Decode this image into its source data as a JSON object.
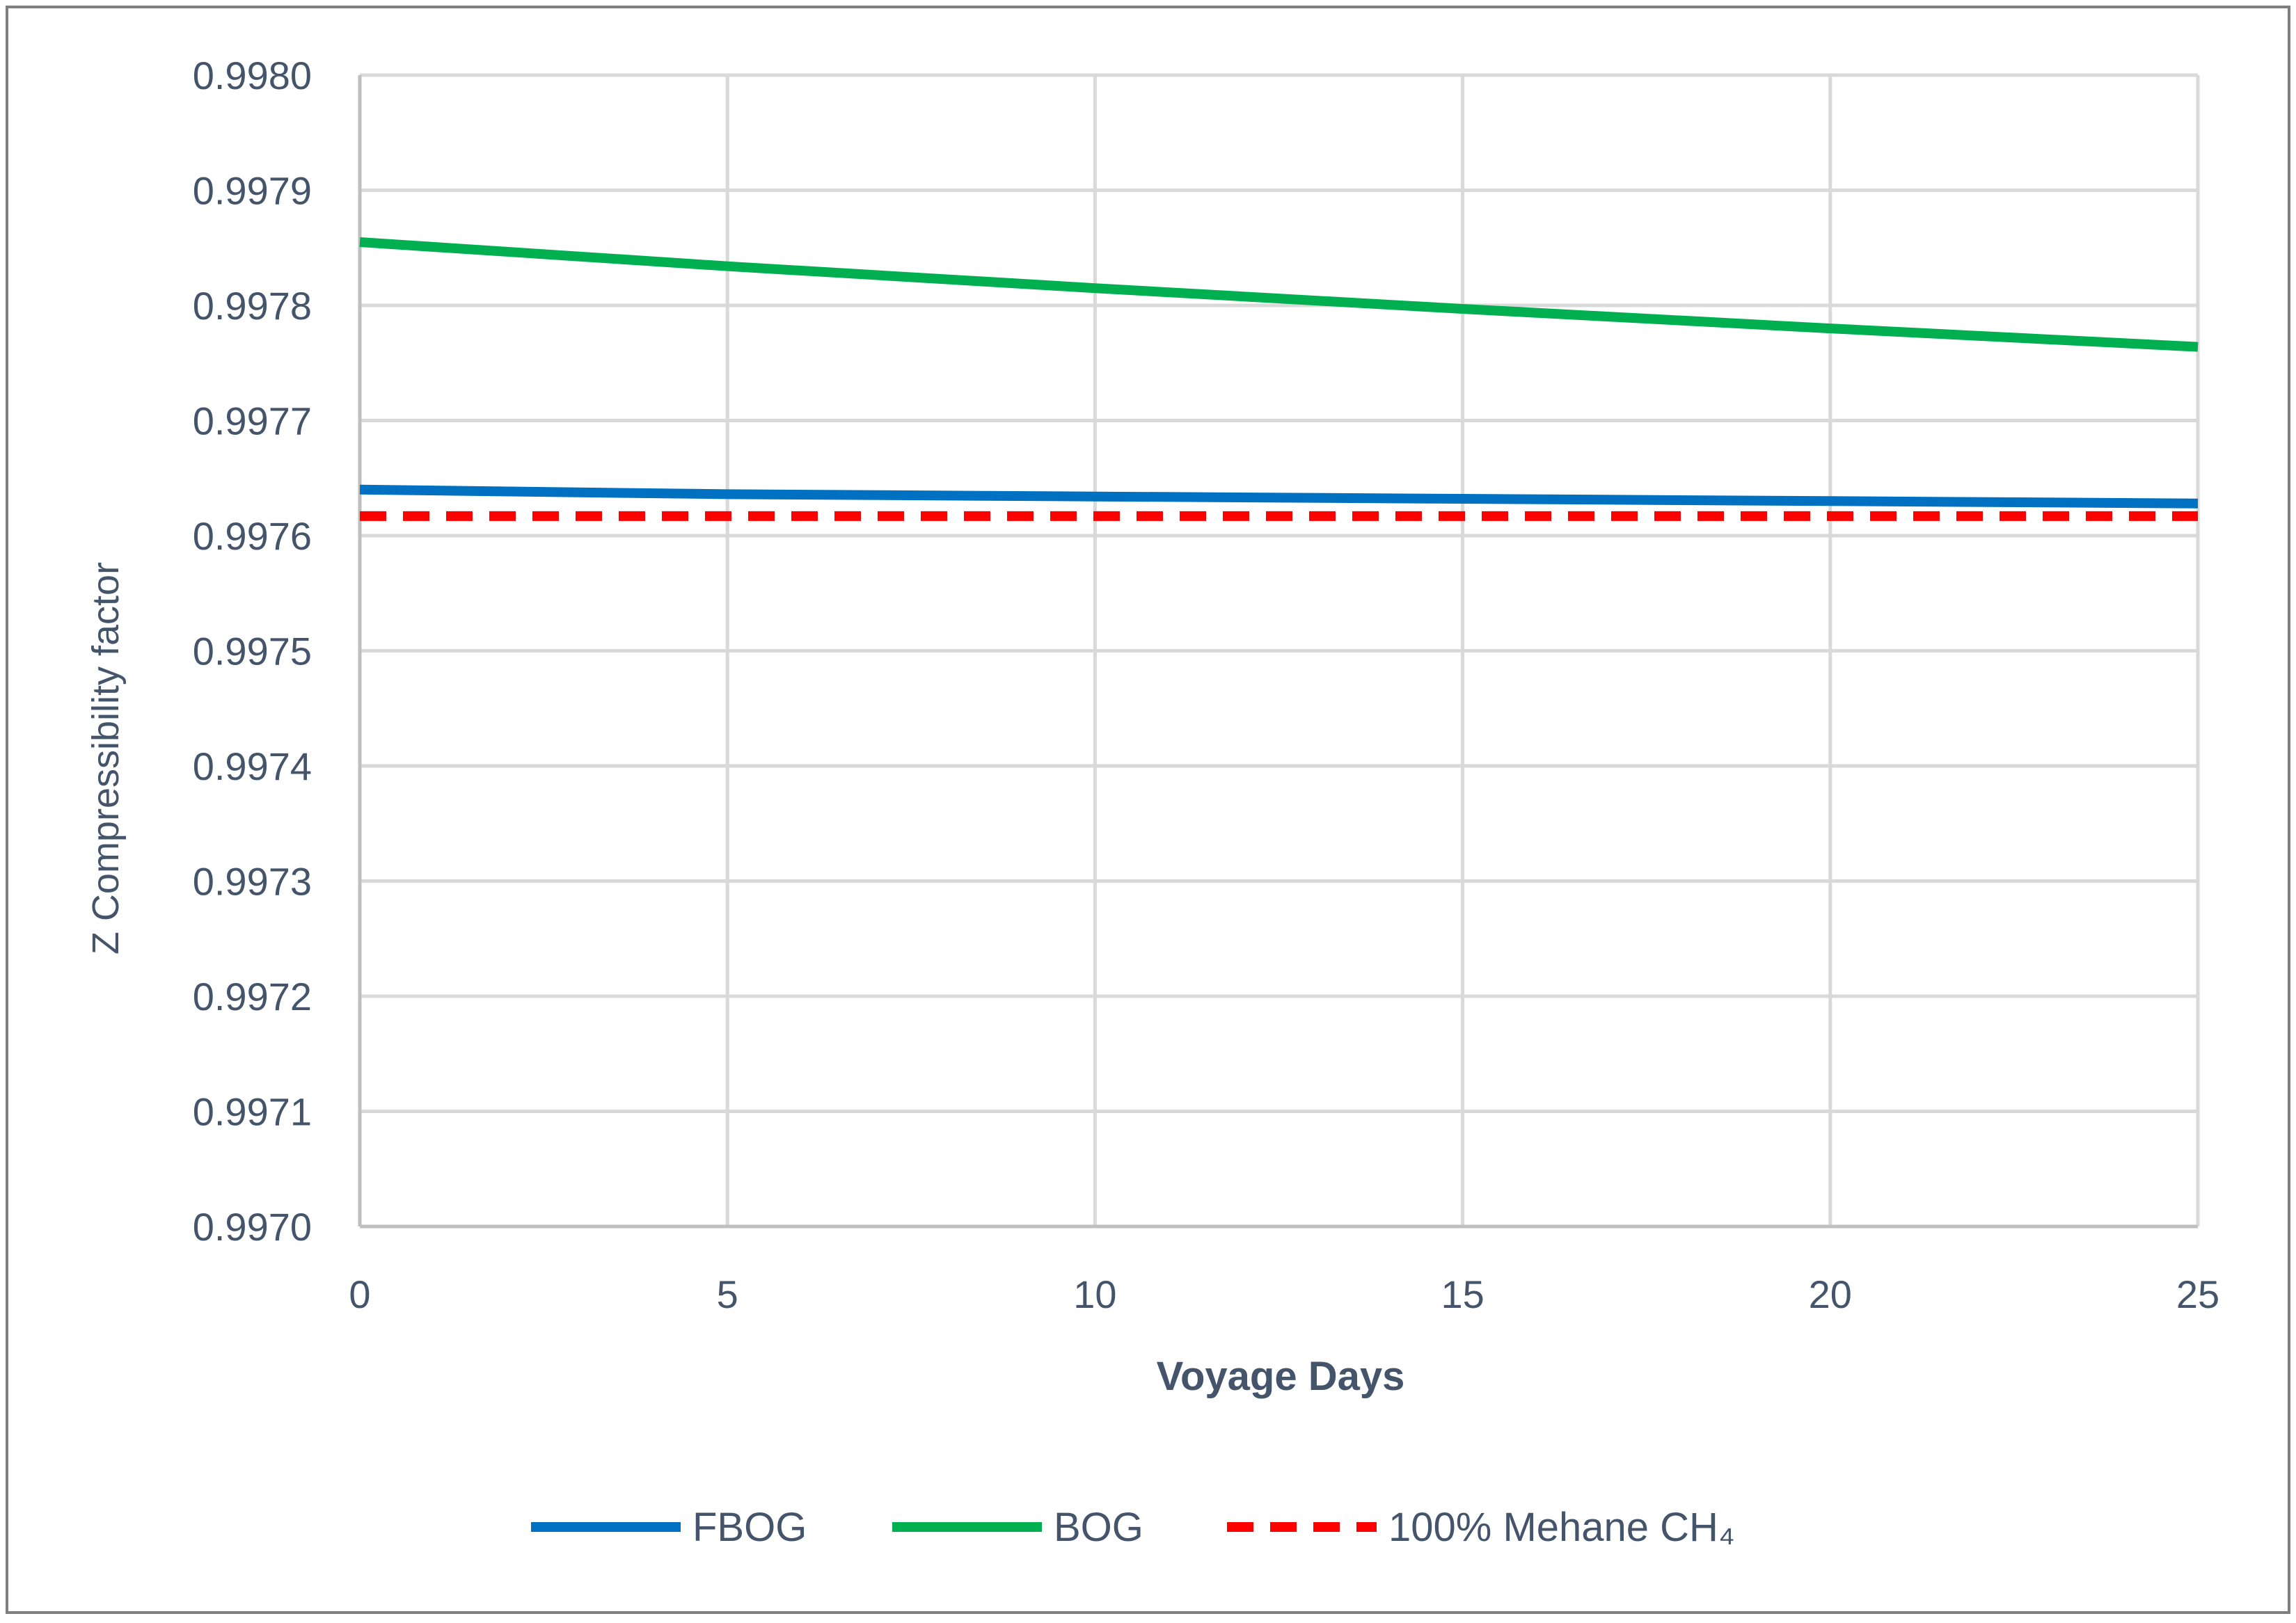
{
  "chart_data": {
    "type": "line",
    "title": "",
    "xlabel": "Voyage Days",
    "ylabel": "Z  Compressibility  factor",
    "xlim": [
      0,
      25
    ],
    "ylim": [
      0.997,
      0.998
    ],
    "x_ticks": [
      0,
      5,
      10,
      15,
      20,
      25
    ],
    "x_tick_labels": [
      "0",
      "5",
      "10",
      "15",
      "20",
      "25"
    ],
    "y_ticks": [
      0.997,
      0.9971,
      0.9972,
      0.9973,
      0.9974,
      0.9975,
      0.9976,
      0.9977,
      0.9978,
      0.9979,
      0.998
    ],
    "y_tick_labels": [
      "0.9970",
      "0.9971",
      "0.9972",
      "0.9973",
      "0.9974",
      "0.9975",
      "0.9976",
      "0.9977",
      "0.9978",
      "0.9979",
      "0.9980"
    ],
    "grid": true,
    "legend_position": "bottom",
    "x": [
      0,
      5,
      10,
      15,
      20,
      25
    ],
    "series": [
      {
        "name": "FBOG",
        "color": "#0070c0",
        "style": "solid",
        "values": [
          0.99764,
          0.997636,
          0.997634,
          0.997632,
          0.99763,
          0.997628
        ]
      },
      {
        "name": "BOG",
        "color": "#00b050",
        "style": "solid",
        "values": [
          0.997855,
          0.997834,
          0.997815,
          0.997797,
          0.99778,
          0.997764
        ]
      },
      {
        "name": "100% Mehane CH₄",
        "color": "#ff0000",
        "style": "dashed",
        "values": [
          0.997617,
          0.997617,
          0.997617,
          0.997617,
          0.997617,
          0.997617
        ]
      }
    ],
    "colors": {
      "grid": "#d9d9d9",
      "axis": "#bfbfbf",
      "text": "#44546a",
      "border": "#7f7f7f"
    }
  }
}
